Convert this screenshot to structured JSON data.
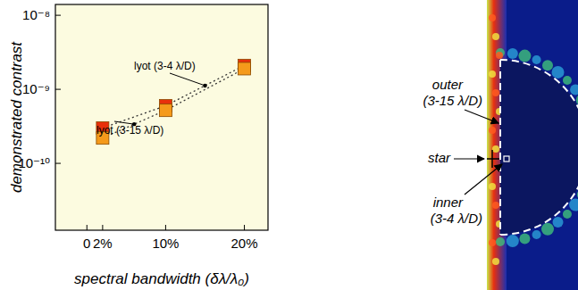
{
  "chart_data": {
    "type": "line",
    "y_label": "demonstrated contrast",
    "x_label": "spectral bandwidth (δλ/λ₀)",
    "x": [
      2,
      10,
      20
    ],
    "series": [
      {
        "name": "lyot (3-4 λ/D)",
        "color": "#e8300c",
        "marker": "square",
        "line_style": "dotted",
        "values": [
          3e-10,
          6e-10,
          2.1e-09
        ]
      },
      {
        "name": "lyot (3-15 λ/D)",
        "color": "#f59a1b",
        "marker": "square",
        "line_style": "dotted",
        "values": [
          2.2e-10,
          5.2e-10,
          1.9e-09
        ]
      }
    ],
    "log": "y",
    "xlim": [
      -4,
      23
    ],
    "xticks": [
      0,
      {
        "value": 2,
        "label": "2%"
      },
      {
        "value": 10,
        "label": "10%"
      },
      {
        "value": 20,
        "label": "20%"
      }
    ],
    "ylim": [
      1.25e-11,
      1.4e-08
    ],
    "yticks": [
      {
        "value": 1e-10,
        "label": "10⁻¹⁰"
      },
      {
        "value": 1e-09,
        "label": "10⁻⁹"
      },
      {
        "value": 1e-08,
        "label": "10⁻⁸"
      }
    ],
    "grid": false
  },
  "inset": {
    "outer": "outer",
    "outer_range": "(3-15 λ/D)",
    "star": "star",
    "inner": "inner",
    "inner_range": "(3-4 λ/D)"
  }
}
